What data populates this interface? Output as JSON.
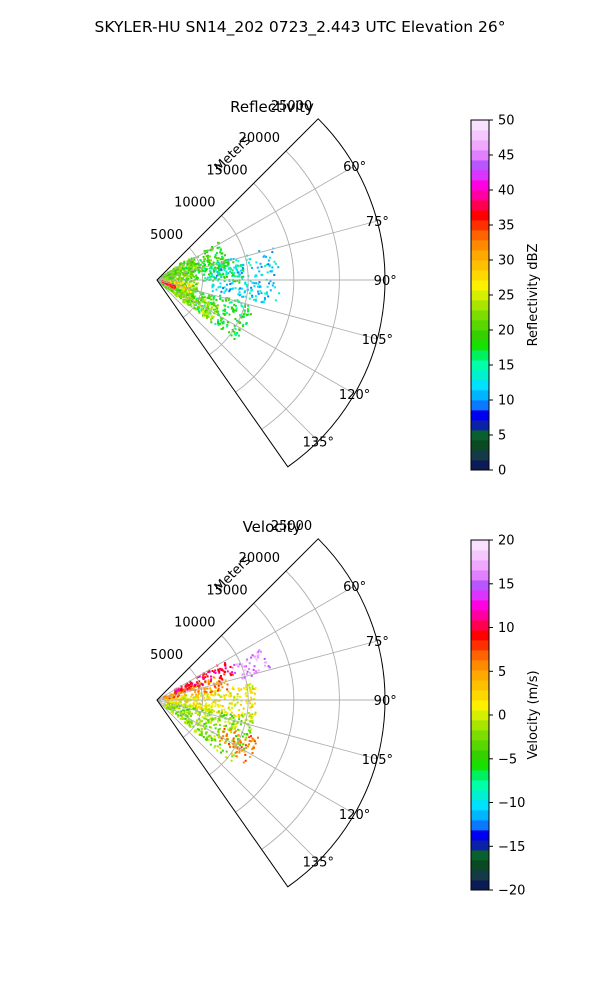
{
  "figure": {
    "title": "SKYLER-HU  SN14_202  0723_2.443 UTC Elevation 26°"
  },
  "chart_data": [
    {
      "type": "heatmap",
      "title": "Reflectivity",
      "radial_label": "Meters",
      "radial_ticks": [
        5000,
        10000,
        15000,
        20000,
        25000
      ],
      "radial_tick_labels": [
        "5000",
        "10000",
        "15000",
        "20000",
        "25000"
      ],
      "radial_range": [
        0,
        25000
      ],
      "azimuth_range": [
        45,
        145
      ],
      "azimuth_ticks": [
        60,
        75,
        90,
        105,
        120,
        135
      ],
      "azimuth_tick_labels": [
        "60°",
        "75°",
        "90°",
        "105°",
        "120°",
        "135°"
      ],
      "grid": true,
      "colorbar": {
        "label": "Reflectivity dBZ",
        "range": [
          0,
          50
        ],
        "ticks": [
          0,
          5,
          10,
          15,
          20,
          25,
          30,
          35,
          40,
          45,
          50
        ],
        "tick_labels": [
          "0",
          "5",
          "10",
          "15",
          "20",
          "25",
          "30",
          "35",
          "40",
          "45",
          "50"
        ],
        "colors": [
          "#0b1b55",
          "#133a46",
          "#0a4a22",
          "#0a5f2e",
          "#0b22a8",
          "#0000f0",
          "#0a78ff",
          "#00b4ff",
          "#00e0ff",
          "#00f0d0",
          "#00ffa8",
          "#00f060",
          "#18e000",
          "#34d000",
          "#58d800",
          "#7cde00",
          "#a8e600",
          "#d4f000",
          "#fff000",
          "#ffd800",
          "#ffc000",
          "#ffa800",
          "#ff8a00",
          "#ff6400",
          "#ff3000",
          "#ff0000",
          "#ff0050",
          "#ff00a0",
          "#ff00e0",
          "#dd33ff",
          "#b855ff",
          "#e080ff",
          "#f0a8ff",
          "#f4c8ff",
          "#fae0ff"
        ]
      },
      "regions": [
        {
          "az": [
            74,
            102
          ],
          "r": [
            6000,
            13500
          ],
          "value": 12,
          "density": 0.42
        },
        {
          "az": [
            75,
            92
          ],
          "r": [
            5000,
            9500
          ],
          "value": 16,
          "density": 0.55
        },
        {
          "az": [
            104,
            128
          ],
          "r": [
            3000,
            11000
          ],
          "value": 18,
          "density": 0.58
        },
        {
          "az": [
            58,
            80
          ],
          "r": [
            900,
            8000
          ],
          "value": 19,
          "density": 0.62
        },
        {
          "az": [
            112,
            128
          ],
          "r": [
            900,
            7500
          ],
          "value": 23,
          "density": 0.66
        },
        {
          "az": [
            55,
            130
          ],
          "r": [
            500,
            4500
          ],
          "value": 21,
          "density": 0.72
        },
        {
          "az": [
            96,
            110
          ],
          "r": [
            700,
            4000
          ],
          "value": 28,
          "density": 0.5
        },
        {
          "az": [
            105,
            120
          ],
          "r": [
            600,
            2200
          ],
          "value": 36,
          "density": 0.75
        }
      ]
    },
    {
      "type": "heatmap",
      "title": "Velocity",
      "radial_label": "Meters",
      "radial_ticks": [
        5000,
        10000,
        15000,
        20000,
        25000
      ],
      "radial_tick_labels": [
        "5000",
        "10000",
        "15000",
        "20000",
        "25000"
      ],
      "radial_range": [
        0,
        25000
      ],
      "azimuth_range": [
        45,
        145
      ],
      "azimuth_ticks": [
        60,
        75,
        90,
        105,
        120,
        135
      ],
      "azimuth_tick_labels": [
        "60°",
        "75°",
        "90°",
        "105°",
        "120°",
        "135°"
      ],
      "grid": true,
      "colorbar": {
        "label": "Velocity (m/s)",
        "range": [
          -20,
          20
        ],
        "ticks": [
          -20,
          -15,
          -10,
          -5,
          0,
          5,
          10,
          15,
          20
        ],
        "tick_labels": [
          "−20",
          "−15",
          "−10",
          "−5",
          "0",
          "5",
          "10",
          "15",
          "20"
        ],
        "colors": [
          "#0b1b55",
          "#133a46",
          "#0a4a22",
          "#0a5f2e",
          "#0b22a8",
          "#0000f0",
          "#0a78ff",
          "#00b4ff",
          "#00e0ff",
          "#00f0d0",
          "#00ffa8",
          "#00f060",
          "#18e000",
          "#34d000",
          "#58d800",
          "#7cde00",
          "#a8e600",
          "#d4f000",
          "#fff000",
          "#ffd800",
          "#ffc000",
          "#ffa800",
          "#ff8a00",
          "#ff6400",
          "#ff3000",
          "#ff0000",
          "#ff0050",
          "#ff00a0",
          "#ff00e0",
          "#dd33ff",
          "#b855ff",
          "#e080ff",
          "#f0a8ff",
          "#f4c8ff",
          "#fae0ff"
        ]
      },
      "regions": [
        {
          "az": [
            100,
            130
          ],
          "r": [
            900,
            11000
          ],
          "value": -2,
          "density": 0.6
        },
        {
          "az": [
            80,
            102
          ],
          "r": [
            900,
            11000
          ],
          "value": 1,
          "density": 0.58
        },
        {
          "az": [
            68,
            82
          ],
          "r": [
            700,
            8000
          ],
          "value": 6,
          "density": 0.6
        },
        {
          "az": [
            60,
            72
          ],
          "r": [
            2000,
            9000
          ],
          "value": 10,
          "density": 0.55
        },
        {
          "az": [
            64,
            76
          ],
          "r": [
            9000,
            13000
          ],
          "value": 16,
          "density": 0.45
        },
        {
          "az": [
            110,
            126
          ],
          "r": [
            8000,
            12000
          ],
          "value": 6,
          "density": 0.45
        }
      ]
    }
  ]
}
